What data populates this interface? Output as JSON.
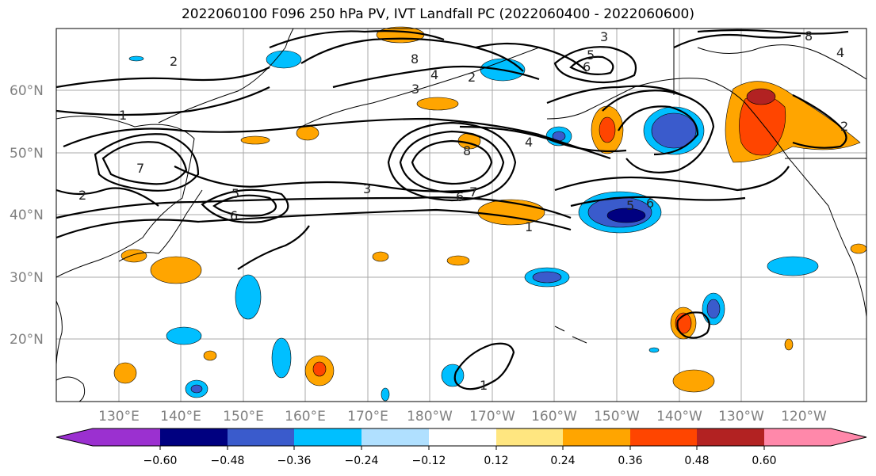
{
  "title": "2022060100 F096 250 hPa PV, IVT Landfall PC (2022060400 - 2022060600)",
  "lat_labels": [
    "60°N",
    "50°N",
    "40°N",
    "30°N",
    "20°N"
  ],
  "lon_labels": [
    "130°E",
    "140°E",
    "150°E",
    "160°E",
    "170°E",
    "180°W",
    "170°W",
    "160°W",
    "150°W",
    "140°W",
    "130°W",
    "120°W"
  ],
  "colorbar": {
    "ticks": [
      "−0.60",
      "−0.48",
      "−0.36",
      "−0.24",
      "−0.12",
      "0.12",
      "0.24",
      "0.36",
      "0.48",
      "0.60"
    ],
    "colors": [
      "#9b30d0",
      "#000080",
      "#3a5bcc",
      "#00bfff",
      "#b0e0ff",
      "#ffffff",
      "#ffe680",
      "#ffa500",
      "#ff4500",
      "#b22222",
      "#ff88aa"
    ]
  },
  "contour_labels": [
    "1",
    "2",
    "3",
    "4",
    "5",
    "6",
    "7",
    "8"
  ],
  "colors": {
    "pos_light": "#ffe680",
    "pos_mid": "#ffa500",
    "pos_strong": "#ff4500",
    "pos_max": "#b22222",
    "neg_light": "#b0e0ff",
    "neg_mid": "#00bfff",
    "neg_strong": "#3a5bcc",
    "neg_max": "#000080"
  }
}
